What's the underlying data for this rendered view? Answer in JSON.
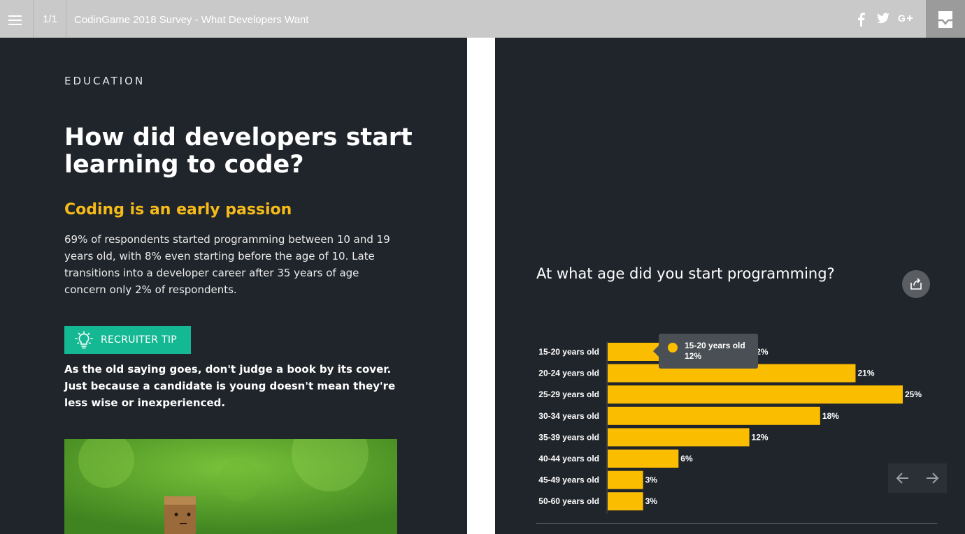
{
  "topbar": {
    "pager": "1/1",
    "title": "CodinGame 2018 Survey - What Developers Want",
    "social_icons": [
      "facebook-icon",
      "twitter-icon",
      "google-plus-icon"
    ],
    "inbox_icon": "inbox-icon"
  },
  "left_panel": {
    "section_label": "EDUCATION",
    "headline": "How did developers start learning to code?",
    "subhead": "Coding is an early passion",
    "body": "69% of respondents started programming between 10 and 19 years old, with 8% even starting before the age of 10. Late transitions into a developer career after 35 years of age concern only 2% of respondents.",
    "tip_label": "RECRUITER TIP",
    "tip_text": "As the old saying goes, don't judge a book by its cover. Just because a candidate is young doesn't mean they're less wise or inexperienced."
  },
  "right_panel": {
    "question": "At what age did you start programming?",
    "tooltip": {
      "name": "15-20 years old",
      "value": "12%"
    }
  },
  "colors": {
    "panel_bg": "#20252b",
    "accent_yellow": "#fbbd00",
    "subhead_yellow": "#f6bb19",
    "tip_green": "#14b994",
    "topbar_bg": "#c9c9c9"
  },
  "chart_data": {
    "type": "bar",
    "orientation": "horizontal",
    "categories": [
      "15-20 years old",
      "20-24 years old",
      "25-29 years old",
      "30-34 years old",
      "35-39 years old",
      "40-44 years old",
      "45-49 years old",
      "50-60 years old"
    ],
    "values": [
      12,
      21,
      25,
      18,
      12,
      6,
      3,
      3
    ],
    "labels": [
      "12%",
      "21%",
      "25%",
      "18%",
      "12%",
      "6%",
      "3%",
      "3%"
    ],
    "xlim": [
      0,
      25
    ],
    "grid": false,
    "legend": "none"
  }
}
